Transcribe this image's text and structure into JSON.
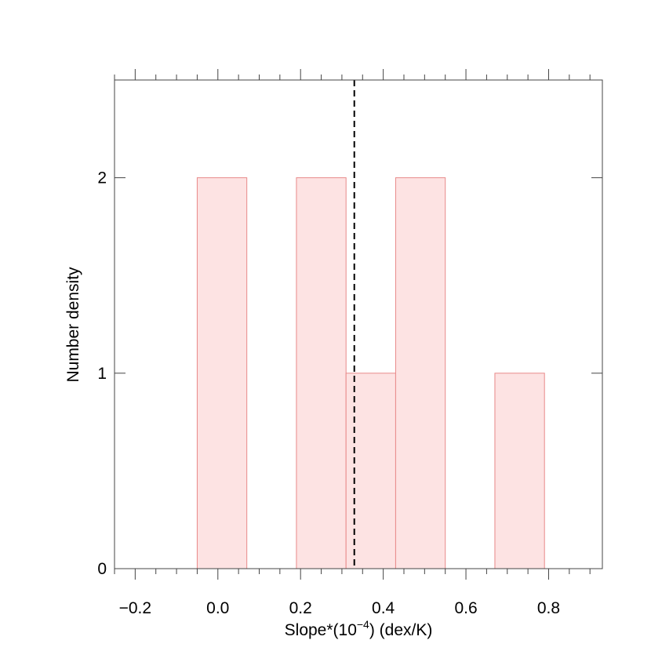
{
  "chart_data": {
    "type": "bar",
    "title": "",
    "xlabel": "Slope*(10",
    "xlabel_exponent": "−4",
    "xlabel_suffix": ") (dex/K)",
    "ylabel": "Number density",
    "xlim": [
      -0.25,
      0.93
    ],
    "ylim": [
      0,
      2.5
    ],
    "x_ticks": [
      -0.2,
      0.0,
      0.2,
      0.4,
      0.6,
      0.8
    ],
    "x_tick_labels": [
      "−0.2",
      "0.0",
      "0.2",
      "0.4",
      "0.6",
      "0.8"
    ],
    "x_minor_step": 0.05,
    "y_ticks": [
      0,
      1,
      2
    ],
    "y_tick_labels": [
      "0",
      "1",
      "2"
    ],
    "bins": [
      {
        "x0": -0.05,
        "x1": 0.07,
        "value": 2
      },
      {
        "x0": 0.07,
        "x1": 0.19,
        "value": 0
      },
      {
        "x0": 0.19,
        "x1": 0.31,
        "value": 2
      },
      {
        "x0": 0.31,
        "x1": 0.43,
        "value": 1
      },
      {
        "x0": 0.43,
        "x1": 0.55,
        "value": 2
      },
      {
        "x0": 0.55,
        "x1": 0.67,
        "value": 0
      },
      {
        "x0": 0.67,
        "x1": 0.79,
        "value": 1
      }
    ],
    "mean_line_x": 0.33,
    "bar_fill": "#fde3e3",
    "bar_stroke": "#e88a8a",
    "grid": false
  }
}
